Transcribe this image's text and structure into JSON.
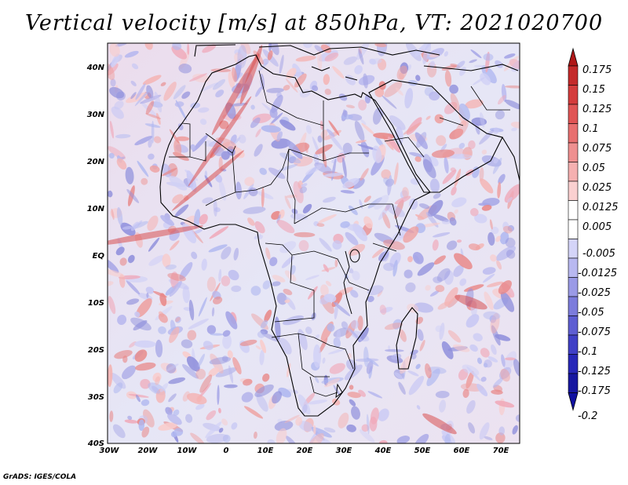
{
  "title": "Vertical velocity [m/s] at 850hPa, VT: 2021020700",
  "credit": "GrADS: IGES/COLA",
  "lat_labels": [
    "40N",
    "30N",
    "20N",
    "10N",
    "EQ",
    "10S",
    "20S",
    "30S",
    "40S"
  ],
  "lon_labels": [
    "30W",
    "20W",
    "10W",
    "0",
    "10E",
    "20E",
    "30E",
    "40E",
    "50E",
    "60E",
    "70E"
  ],
  "colorbar": {
    "labels": [
      "0.175",
      "0.15",
      "0.125",
      "0.1",
      "0.075",
      "0.05",
      "0.025",
      "0.0125",
      "0.005",
      "-0.005",
      "-0.0125",
      "-0.025",
      "-0.05",
      "-0.075",
      "-0.1",
      "-0.125",
      "-0.175",
      "-0.2"
    ],
    "colors": [
      "#b01818",
      "#c42a2a",
      "#d43c3c",
      "#e05555",
      "#e87070",
      "#ef9090",
      "#f5b0b0",
      "#fad0d0",
      "#ffffff",
      "#ffffff",
      "#d4d4f8",
      "#b8b8f0",
      "#9a9ae6",
      "#7c7cdc",
      "#5e5ed2",
      "#4040c6",
      "#2828b8",
      "#1818a0",
      "#1010a0"
    ]
  },
  "chart_data": {
    "type": "heatmap",
    "title": "Vertical velocity [m/s] at 850hPa, VT: 2021020700",
    "variable": "Vertical velocity",
    "units": "m/s",
    "level": "850hPa",
    "valid_time": "2021020700",
    "lon_range": [
      -30,
      75
    ],
    "lat_range": [
      -40,
      45
    ],
    "lon_ticks": [
      "30W",
      "20W",
      "10W",
      "0",
      "10E",
      "20E",
      "30E",
      "40E",
      "50E",
      "60E",
      "70E"
    ],
    "lat_ticks": [
      "40N",
      "30N",
      "20N",
      "10N",
      "EQ",
      "10S",
      "20S",
      "30S",
      "40S"
    ],
    "contour_levels": [
      -0.2,
      -0.175,
      -0.125,
      -0.1,
      -0.075,
      -0.05,
      -0.025,
      -0.0125,
      -0.005,
      0.005,
      0.0125,
      0.025,
      0.05,
      0.075,
      0.1,
      0.125,
      0.15,
      0.175
    ]
  }
}
